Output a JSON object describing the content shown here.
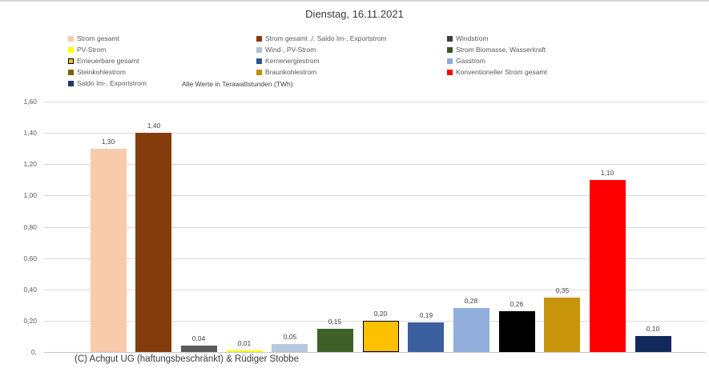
{
  "title": "Dienstag, 16.11.2021",
  "note": "Alle Werte in Terawattstunden (TWh)",
  "footer": "(C) Achgut UG (haftungsbeschränkt) & Rüdiger Stobbe",
  "legend": {
    "items": [
      {
        "label": "Strom gesamt",
        "color": "#F8CBAD",
        "border": null
      },
      {
        "label": "Strom gesamt ./. Saldo Im-, Exportstrom",
        "color": "#843C0C",
        "border": null
      },
      {
        "label": "Windstrom",
        "color": "#404040",
        "border": null
      },
      {
        "label": "PV-Strom",
        "color": "#FFFF00",
        "border": null
      },
      {
        "label": "Wind-, PV-Strom",
        "color": "#AEBFD9",
        "border": null
      },
      {
        "label": "Strom Biomasse, Wasserkraft",
        "color": "#375623",
        "border": null
      },
      {
        "label": "Erneuerbare gesamt",
        "color": "#FFC000",
        "border": "#000000"
      },
      {
        "label": "Kernenergiestrom",
        "color": "#2F5597",
        "border": null
      },
      {
        "label": "Gasstrom",
        "color": "#8FAADC",
        "border": null
      },
      {
        "label": "Steinkohlestrom",
        "color": "#7F6000",
        "border": null
      },
      {
        "label": "Braunkohlestrom",
        "color": "#BF8F00",
        "border": null
      },
      {
        "label": "Konventioneller Strom gesamt",
        "color": "#FF0000",
        "border": null
      },
      {
        "label": "Saldo Im-, Exportstrom",
        "color": "#1F3864",
        "border": null
      }
    ]
  },
  "chart_data": {
    "type": "bar",
    "title": "Dienstag, 16.11.2021",
    "subtitle": "Alle Werte in Terawattstunden (TWh)",
    "xlabel": "",
    "ylabel": "",
    "unit": "TWh",
    "ylim": [
      0,
      1.6
    ],
    "ytick_step": 0.2,
    "yticks": [
      "1,60",
      "1,40",
      "1,20",
      "1,00",
      "0,80",
      "0,60",
      "0,40",
      "0,20",
      "0,"
    ],
    "grid": true,
    "legend_position": "top",
    "series": [
      {
        "name": "Strom gesamt",
        "slug": "strom-gesamt",
        "value": 1.3,
        "label": "1,30",
        "color": "#F8CBAD",
        "border": null
      },
      {
        "name": "Strom gesamt ./. Saldo Im-, Exportstrom",
        "slug": "strom-gesamt-saldo",
        "value": 1.4,
        "label": "1,40",
        "color": "#843C0C",
        "border": null
      },
      {
        "name": "Windstrom",
        "slug": "windstrom",
        "value": 0.04,
        "label": "0,04",
        "color": "#595959",
        "border": null
      },
      {
        "name": "PV-Strom",
        "slug": "pv-strom",
        "value": 0.01,
        "label": "0,01",
        "color": "#FFFF00",
        "border": null
      },
      {
        "name": "Wind-, PV-Strom",
        "slug": "wind-pv-strom",
        "value": 0.05,
        "label": "0,05",
        "color": "#B9C7DE",
        "border": null
      },
      {
        "name": "Strom Biomasse, Wasserkraft",
        "slug": "biomasse-wasserkraft",
        "value": 0.15,
        "label": "0,15",
        "color": "#3D6128",
        "border": null
      },
      {
        "name": "Erneuerbare gesamt",
        "slug": "erneuerbare-gesamt",
        "value": 0.2,
        "label": "0,20",
        "color": "#FFC000",
        "border": "#000000"
      },
      {
        "name": "Kernenergiestrom",
        "slug": "kernenergiestrom",
        "value": 0.19,
        "label": "0,19",
        "color": "#3B5F9E",
        "border": null
      },
      {
        "name": "Gasstrom",
        "slug": "gasstrom",
        "value": 0.28,
        "label": "0,28",
        "color": "#92AEDB",
        "border": null
      },
      {
        "name": "Steinkohlestrom",
        "slug": "steinkohlestrom",
        "value": 0.26,
        "label": "0,26",
        "color": "#000000",
        "border": null
      },
      {
        "name": "Braunkohlestrom",
        "slug": "braunkohlestrom",
        "value": 0.35,
        "label": "0,35",
        "color": "#C8940B",
        "border": null
      },
      {
        "name": "Konventioneller Strom gesamt",
        "slug": "konventioneller-strom-gesamt",
        "value": 1.1,
        "label": "1,10",
        "color": "#FF0000",
        "border": null
      },
      {
        "name": "Saldo Im-, Exportstrom",
        "slug": "saldo-im-exportstrom",
        "value": 0.1,
        "label": "0,10",
        "color": "#12295B",
        "border": null
      }
    ]
  }
}
